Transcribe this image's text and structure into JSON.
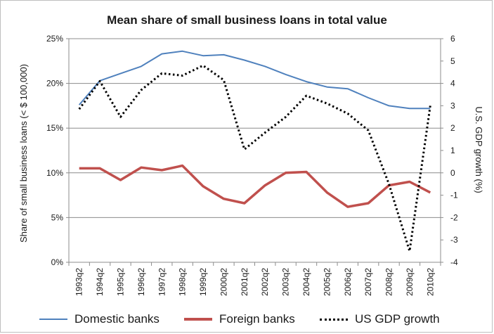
{
  "chart_data": {
    "type": "line",
    "title": "Mean share of small business loans in total value",
    "ylabel": "Share of small business loans (< $ 100,000)",
    "y2label": "U.S. GDP growth (%)",
    "categories": [
      "1993q2",
      "1994q2",
      "1995q2",
      "1996q2",
      "1997q2",
      "1998q2",
      "1999q2",
      "2000q2",
      "2001q2",
      "2002q2",
      "2003q2",
      "2004q2",
      "2005q2",
      "2006q2",
      "2007q2",
      "2008q2",
      "2009q2",
      "2010q2"
    ],
    "ylim": [
      0,
      25
    ],
    "y_ticks": [
      "0%",
      "5%",
      "10%",
      "15%",
      "20%",
      "25%"
    ],
    "y2lim": [
      -4,
      6
    ],
    "y2_ticks": [
      "-4",
      "-3",
      "-2",
      "-1",
      "0",
      "1",
      "2",
      "3",
      "4",
      "5",
      "6"
    ],
    "grid": "horizontal",
    "legend_position": "bottom",
    "series": [
      {
        "name": "Domestic banks",
        "axis": "left",
        "color": "#4f81bd",
        "style": "solid",
        "values": [
          17.6,
          20.3,
          21.1,
          21.9,
          23.3,
          23.6,
          23.1,
          23.2,
          22.6,
          21.9,
          21.0,
          20.2,
          19.6,
          19.4,
          18.4,
          17.5,
          17.2,
          17.2
        ]
      },
      {
        "name": "Foreign banks",
        "axis": "left",
        "color": "#c0504d",
        "style": "solid",
        "values": [
          10.5,
          10.5,
          9.2,
          10.6,
          10.3,
          10.8,
          8.5,
          7.1,
          6.6,
          8.6,
          10.0,
          10.1,
          7.8,
          6.2,
          6.6,
          8.6,
          9.0,
          7.8
        ]
      },
      {
        "name": "US GDP growth",
        "axis": "right",
        "color": "#000000",
        "style": "dotted",
        "values": [
          2.85,
          4.1,
          2.5,
          3.7,
          4.45,
          4.35,
          4.8,
          4.15,
          1.05,
          1.8,
          2.5,
          3.45,
          3.1,
          2.65,
          1.9,
          -0.5,
          -3.5,
          3.0
        ]
      }
    ]
  }
}
